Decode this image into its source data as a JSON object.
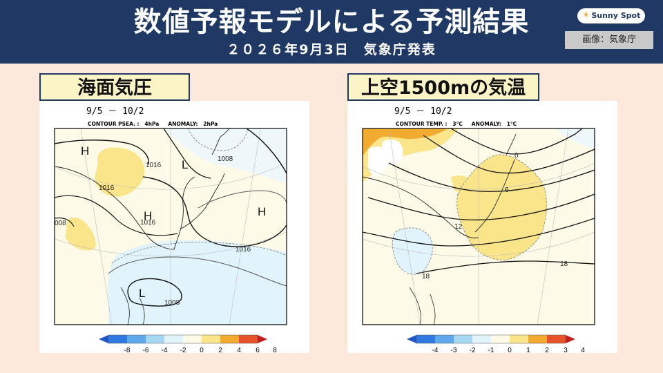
{
  "header": {
    "title": "数値予報モデルによる予測結果",
    "subtitle": "２０２６年9月3日　気象庁発表",
    "logo": "Sunny Spot",
    "credit": "画像：気象庁"
  },
  "colors": {
    "header_bg": "#1f3864",
    "page_bg": "#fde9dc",
    "label_bg": "#fbf4c7"
  },
  "panels": [
    {
      "label": "海面気圧",
      "period": "9/5 － 10/2",
      "contour_info": "CONTOUR PSEA. :   4hPa     ANOMALY:   2hPa",
      "contour_labels": [
        "1016",
        "1016",
        "1008",
        "1016",
        "008",
        "1016",
        "1008"
      ],
      "symbols": [
        "H",
        "L",
        "H",
        "H",
        "L"
      ],
      "colorbar_ticks": [
        "-8",
        "-6",
        "-4",
        "-2",
        "0",
        "2",
        "4",
        "6",
        "8"
      ]
    },
    {
      "label": "上空1500mの気温",
      "period": "9/5 － 10/2",
      "contour_info": "CONTOUR TEMP. :   3°C     ANOMALY:   1°C",
      "contour_labels": [
        "0",
        "6",
        "12",
        "18",
        "18"
      ],
      "colorbar_ticks": [
        "-4",
        "-3",
        "-2",
        "-1",
        "0",
        "1",
        "2",
        "3",
        "4"
      ]
    }
  ]
}
